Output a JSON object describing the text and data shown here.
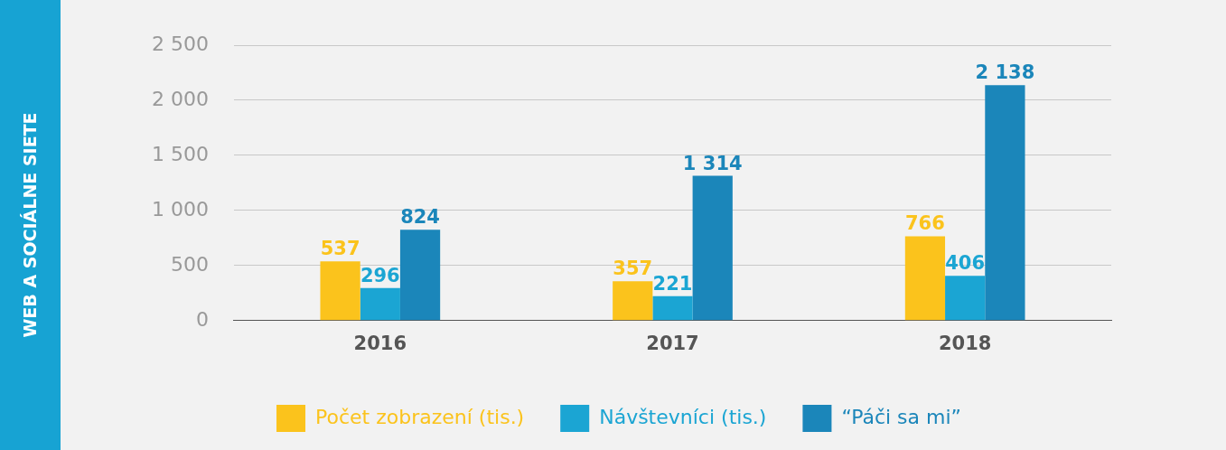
{
  "chart_data": {
    "type": "bar",
    "annotations": [
      "WEB A SOCIÁLNE SIETE"
    ],
    "categories": [
      "2016",
      "2017",
      "2018"
    ],
    "series": [
      {
        "name": "Počet zobrazení (tis.)",
        "color": "#fbc31c",
        "values": [
          537,
          357,
          766
        ]
      },
      {
        "name": "Návštevníci (tis.)",
        "color": "#1ba5d3",
        "values": [
          296,
          221,
          406
        ]
      },
      {
        "name": "“Páči sa mi”",
        "color": "#1b86ba",
        "values": [
          824,
          1314,
          2138
        ]
      }
    ],
    "ylim": [
      0,
      2500
    ],
    "yticks": [
      {
        "value": 0,
        "label": "0"
      },
      {
        "value": 500,
        "label": "500"
      },
      {
        "value": 1000,
        "label": "1 000"
      },
      {
        "value": 1500,
        "label": "1 500"
      },
      {
        "value": 2000,
        "label": "2 000"
      },
      {
        "value": 2500,
        "label": "2 500"
      }
    ],
    "grid": "y",
    "legend": "bottom",
    "data_labels": true
  }
}
